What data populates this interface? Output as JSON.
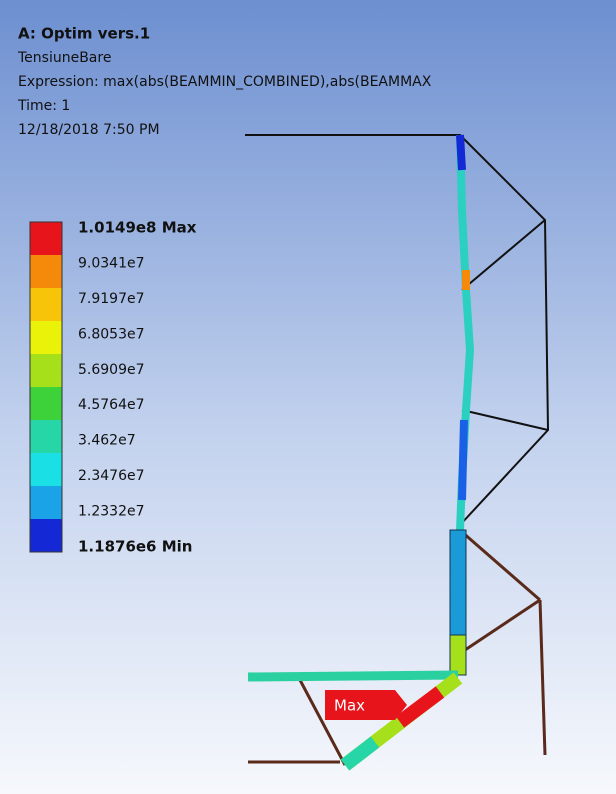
{
  "header": {
    "title": "A: Optim vers.1",
    "name": "TensiuneBare",
    "expression": "Expression: max(abs(BEAMMIN_COMBINED),abs(BEAMMAX",
    "time": "Time: 1",
    "date": "12/18/2018 7:50 PM"
  },
  "legend": {
    "labels": [
      "1.0149e8 Max",
      "9.0341e7",
      "7.9197e7",
      "6.8053e7",
      "5.6909e7",
      "4.5764e7",
      "3.462e7",
      "2.3476e7",
      "1.2332e7",
      "1.1876e6 Min"
    ],
    "colors": [
      "#e8141c",
      "#f58a0a",
      "#f7c40a",
      "#eaf20a",
      "#a6e01a",
      "#3dd13a",
      "#26d6a6",
      "#1ae0e6",
      "#1aa3e6",
      "#1428d6"
    ]
  },
  "tag": "Max"
}
